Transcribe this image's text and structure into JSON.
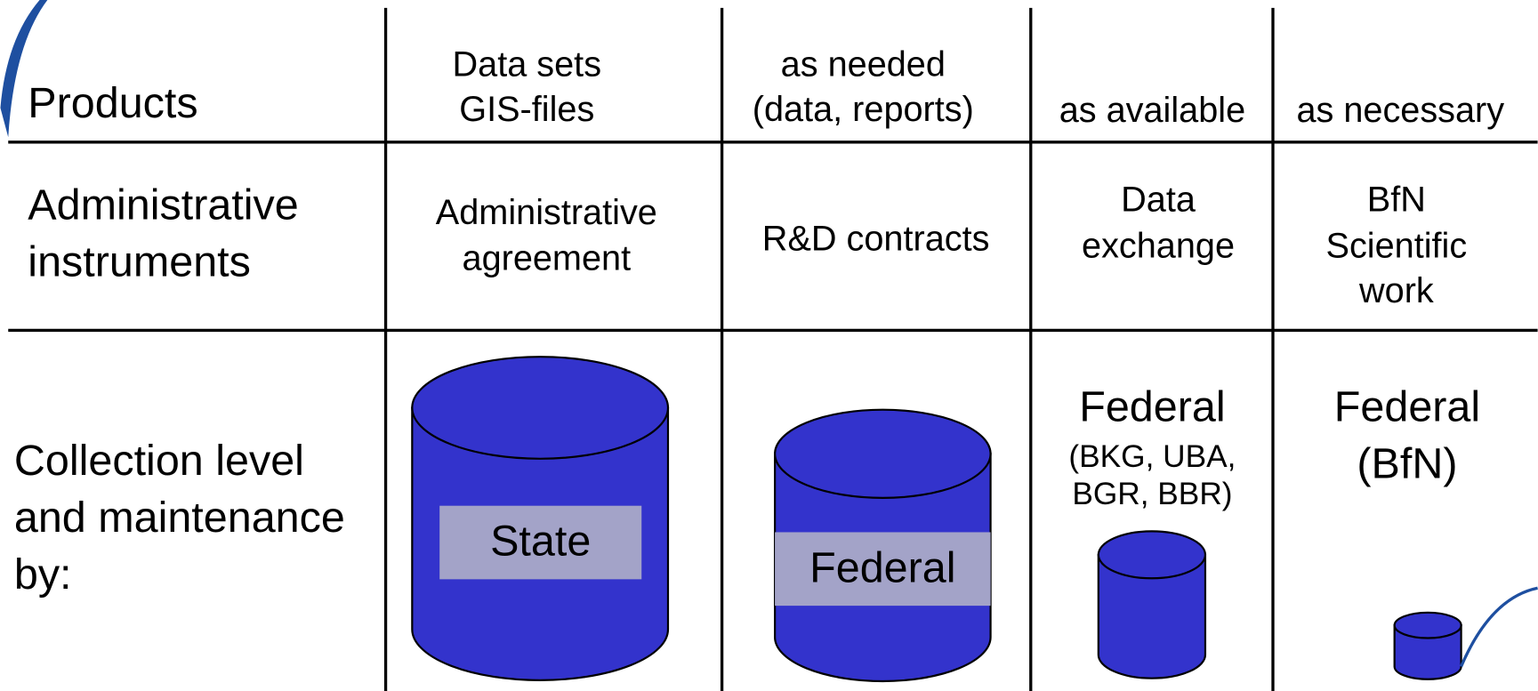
{
  "table": {
    "rows": [
      {
        "label": [
          "Products"
        ],
        "cells": [
          [
            "Data sets",
            "GIS-files"
          ],
          [
            "as needed",
            "(data, reports)"
          ],
          [
            "as available"
          ],
          [
            "as necessary"
          ]
        ]
      },
      {
        "label": [
          "Administrative",
          "instruments"
        ],
        "cells": [
          [
            "Administrative",
            "agreement"
          ],
          [
            "R&D contracts"
          ],
          [
            "Data",
            "exchange"
          ],
          [
            "BfN",
            "Scientific",
            "work"
          ]
        ]
      },
      {
        "label": [
          "Collection level",
          "and maintenance",
          "by:"
        ],
        "cells": [
          [
            "State"
          ],
          [
            "Federal"
          ],
          [
            "Federal",
            "(BKG, UBA,",
            "BGR, BBR)"
          ],
          [
            "Federal",
            "(BfN)"
          ]
        ]
      }
    ]
  }
}
